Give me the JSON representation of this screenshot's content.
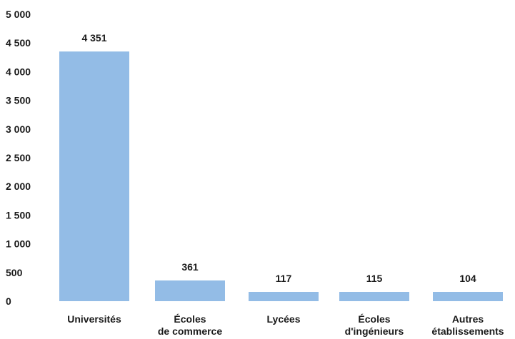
{
  "chart_data": {
    "type": "bar",
    "title": "",
    "xlabel": "",
    "ylabel": "",
    "categories": [
      [
        "Universités"
      ],
      [
        "Écoles",
        "de commerce"
      ],
      [
        "Lycées"
      ],
      [
        "Écoles",
        "d'ingénieurs"
      ],
      [
        "Autres",
        "établissements"
      ]
    ],
    "values": [
      4351,
      361,
      117,
      115,
      104
    ],
    "value_labels": [
      "4 351",
      "361",
      "117",
      "115",
      "104"
    ],
    "y_ticks": [
      0,
      500,
      1000,
      1500,
      2000,
      2500,
      3000,
      3500,
      4000,
      4500,
      5000
    ],
    "y_tick_labels": [
      "0",
      "500",
      "1 000",
      "1 500",
      "2 000",
      "2 500",
      "3 000",
      "3 500",
      "4 000",
      "4 500",
      "5 000"
    ],
    "ylim": [
      0,
      5000
    ],
    "grid": false,
    "legend": "none",
    "bar_color": "#93bce6",
    "text_color": "#1a1a1a"
  }
}
